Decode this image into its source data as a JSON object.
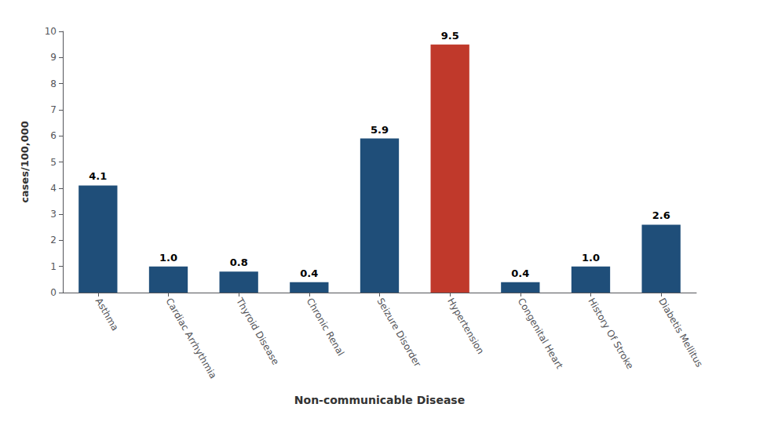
{
  "chart_data": {
    "type": "bar",
    "categories": [
      "Asthma",
      "Cardiac Arrhythmia",
      "Thyroid Disease",
      "Chronic Renal",
      "Seizure Disorder",
      "Hypertension",
      "Congenital Heart",
      "History Of Stroke",
      "Diabetis Mellitus"
    ],
    "values": [
      4.1,
      1.0,
      0.8,
      0.4,
      5.9,
      9.5,
      0.4,
      1.0,
      2.6
    ],
    "value_labels": [
      "4.1",
      "1.0",
      "0.8",
      "0.4",
      "5.9",
      "9.5",
      "0.4",
      "1.0",
      "2.6"
    ],
    "colors": [
      "#1f4e79",
      "#1f4e79",
      "#1f4e79",
      "#1f4e79",
      "#1f4e79",
      "#c0392b",
      "#1f4e79",
      "#1f4e79",
      "#1f4e79"
    ],
    "xlabel": "Non-communicable Disease",
    "ylabel": "cases/100,000",
    "ylim": [
      0,
      10
    ],
    "yticks": [
      0,
      1,
      2,
      3,
      4,
      5,
      6,
      7,
      8,
      9,
      10
    ],
    "grid": false,
    "data_labels": true
  }
}
